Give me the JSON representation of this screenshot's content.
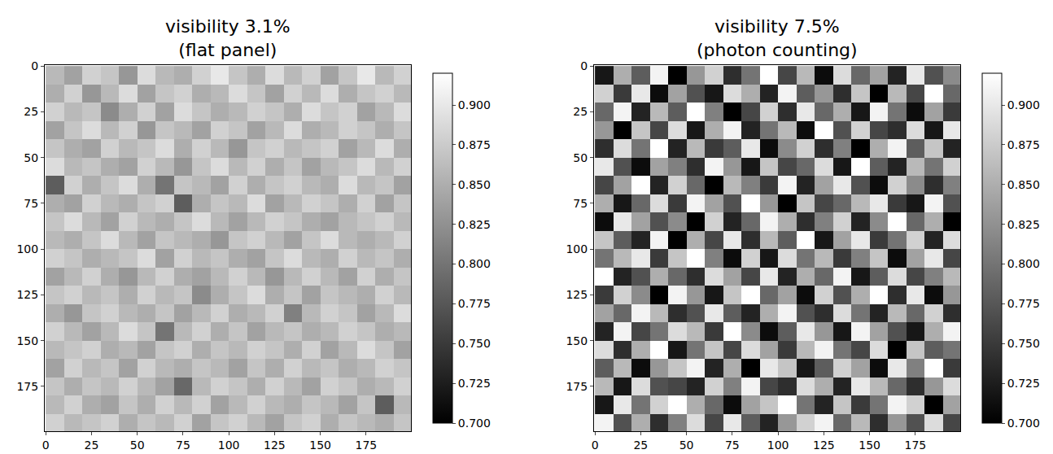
{
  "chart_data": [
    {
      "type": "heatmap",
      "title": "visibility 3.1%\n(flat panel)",
      "color": "gray",
      "x": [
        5,
        15,
        25,
        35,
        45,
        55,
        65,
        75,
        85,
        95,
        105,
        115,
        125,
        135,
        145,
        155,
        165,
        175,
        185,
        195
      ],
      "y": [
        5,
        15,
        25,
        35,
        45,
        55,
        65,
        75,
        85,
        95,
        105,
        115,
        125,
        135,
        145,
        155,
        165,
        175,
        185,
        195
      ],
      "z": [
        [
          0.86,
          0.84,
          0.88,
          0.87,
          0.83,
          0.89,
          0.86,
          0.85,
          0.88,
          0.9,
          0.87,
          0.85,
          0.89,
          0.86,
          0.88,
          0.84,
          0.87,
          0.9,
          0.86,
          0.88
        ],
        [
          0.85,
          0.88,
          0.83,
          0.86,
          0.89,
          0.84,
          0.87,
          0.88,
          0.85,
          0.86,
          0.89,
          0.87,
          0.84,
          0.88,
          0.86,
          0.89,
          0.85,
          0.87,
          0.88,
          0.86
        ],
        [
          0.88,
          0.86,
          0.87,
          0.82,
          0.85,
          0.88,
          0.84,
          0.89,
          0.87,
          0.85,
          0.86,
          0.88,
          0.87,
          0.85,
          0.89,
          0.87,
          0.88,
          0.84,
          0.86,
          0.89
        ],
        [
          0.84,
          0.87,
          0.89,
          0.86,
          0.88,
          0.83,
          0.87,
          0.86,
          0.84,
          0.88,
          0.87,
          0.84,
          0.86,
          0.89,
          0.85,
          0.86,
          0.88,
          0.87,
          0.85,
          0.87
        ],
        [
          0.87,
          0.85,
          0.84,
          0.88,
          0.86,
          0.87,
          0.89,
          0.85,
          0.88,
          0.86,
          0.83,
          0.87,
          0.88,
          0.86,
          0.87,
          0.88,
          0.84,
          0.86,
          0.89,
          0.85
        ],
        [
          0.89,
          0.86,
          0.87,
          0.85,
          0.84,
          0.88,
          0.86,
          0.83,
          0.87,
          0.89,
          0.86,
          0.88,
          0.85,
          0.87,
          0.84,
          0.86,
          0.87,
          0.89,
          0.86,
          0.88
        ],
        [
          0.78,
          0.88,
          0.85,
          0.87,
          0.89,
          0.85,
          0.8,
          0.87,
          0.86,
          0.84,
          0.88,
          0.85,
          0.87,
          0.88,
          0.86,
          0.85,
          0.89,
          0.86,
          0.87,
          0.84
        ],
        [
          0.85,
          0.84,
          0.88,
          0.86,
          0.85,
          0.87,
          0.88,
          0.78,
          0.85,
          0.87,
          0.86,
          0.89,
          0.84,
          0.86,
          0.88,
          0.87,
          0.85,
          0.88,
          0.84,
          0.87
        ],
        [
          0.87,
          0.89,
          0.86,
          0.84,
          0.88,
          0.86,
          0.85,
          0.87,
          0.89,
          0.86,
          0.84,
          0.86,
          0.88,
          0.87,
          0.85,
          0.84,
          0.86,
          0.87,
          0.88,
          0.86
        ],
        [
          0.86,
          0.85,
          0.87,
          0.89,
          0.86,
          0.84,
          0.87,
          0.86,
          0.85,
          0.83,
          0.87,
          0.88,
          0.86,
          0.84,
          0.87,
          0.89,
          0.86,
          0.85,
          0.86,
          0.88
        ],
        [
          0.88,
          0.87,
          0.85,
          0.86,
          0.87,
          0.89,
          0.84,
          0.88,
          0.86,
          0.87,
          0.85,
          0.84,
          0.87,
          0.89,
          0.86,
          0.85,
          0.88,
          0.86,
          0.87,
          0.85
        ],
        [
          0.84,
          0.86,
          0.88,
          0.85,
          0.83,
          0.86,
          0.88,
          0.85,
          0.84,
          0.86,
          0.88,
          0.86,
          0.83,
          0.86,
          0.88,
          0.86,
          0.84,
          0.88,
          0.85,
          0.87
        ],
        [
          0.87,
          0.88,
          0.86,
          0.87,
          0.85,
          0.88,
          0.86,
          0.87,
          0.82,
          0.85,
          0.87,
          0.89,
          0.85,
          0.87,
          0.84,
          0.87,
          0.86,
          0.85,
          0.88,
          0.86
        ],
        [
          0.85,
          0.83,
          0.87,
          0.88,
          0.86,
          0.85,
          0.87,
          0.84,
          0.86,
          0.88,
          0.85,
          0.86,
          0.88,
          0.81,
          0.86,
          0.88,
          0.87,
          0.84,
          0.86,
          0.89
        ],
        [
          0.88,
          0.86,
          0.84,
          0.86,
          0.89,
          0.87,
          0.8,
          0.86,
          0.88,
          0.85,
          0.87,
          0.84,
          0.86,
          0.87,
          0.85,
          0.86,
          0.88,
          0.87,
          0.85,
          0.86
        ],
        [
          0.86,
          0.87,
          0.88,
          0.85,
          0.86,
          0.84,
          0.87,
          0.88,
          0.85,
          0.87,
          0.86,
          0.88,
          0.87,
          0.85,
          0.88,
          0.84,
          0.86,
          0.89,
          0.87,
          0.84
        ],
        [
          0.84,
          0.88,
          0.86,
          0.87,
          0.84,
          0.88,
          0.86,
          0.85,
          0.87,
          0.86,
          0.84,
          0.87,
          0.85,
          0.88,
          0.86,
          0.87,
          0.85,
          0.86,
          0.88,
          0.87
        ],
        [
          0.87,
          0.85,
          0.87,
          0.86,
          0.88,
          0.86,
          0.84,
          0.79,
          0.86,
          0.88,
          0.87,
          0.85,
          0.88,
          0.86,
          0.84,
          0.88,
          0.87,
          0.85,
          0.86,
          0.88
        ],
        [
          0.86,
          0.88,
          0.85,
          0.84,
          0.87,
          0.85,
          0.88,
          0.86,
          0.88,
          0.84,
          0.86,
          0.88,
          0.86,
          0.85,
          0.87,
          0.86,
          0.84,
          0.87,
          0.78,
          0.86
        ],
        [
          0.88,
          0.86,
          0.87,
          0.88,
          0.85,
          0.87,
          0.86,
          0.88,
          0.84,
          0.87,
          0.88,
          0.86,
          0.84,
          0.87,
          0.88,
          0.85,
          0.87,
          0.86,
          0.85,
          0.87
        ]
      ],
      "xlim": [
        -0.5,
        199.5
      ],
      "ylim": [
        199.5,
        -0.5
      ],
      "xticks": [
        0,
        25,
        50,
        75,
        100,
        125,
        150,
        175
      ],
      "yticks": [
        0,
        25,
        50,
        75,
        100,
        125,
        150,
        175
      ],
      "colorbar_range": [
        0.7,
        0.92
      ],
      "colorbar_ticks": [
        {
          "value": 0.7,
          "label": "0.700"
        },
        {
          "value": 0.725,
          "label": "0.725"
        },
        {
          "value": 0.75,
          "label": "0.750"
        },
        {
          "value": 0.775,
          "label": "0.775"
        },
        {
          "value": 0.8,
          "label": "0.800"
        },
        {
          "value": 0.825,
          "label": "0.825"
        },
        {
          "value": 0.85,
          "label": "0.850"
        },
        {
          "value": 0.875,
          "label": "0.875"
        },
        {
          "value": 0.9,
          "label": "0.900"
        }
      ]
    },
    {
      "type": "heatmap",
      "title": "visibility 7.5%\n(photon counting)",
      "color": "gray",
      "x": [
        5,
        15,
        25,
        35,
        45,
        55,
        65,
        75,
        85,
        95,
        105,
        115,
        125,
        135,
        145,
        155,
        165,
        175,
        185,
        195
      ],
      "y": [
        5,
        15,
        25,
        35,
        45,
        55,
        65,
        75,
        85,
        95,
        105,
        115,
        125,
        135,
        145,
        155,
        165,
        175,
        185,
        195
      ],
      "z": [
        [
          0.72,
          0.85,
          0.78,
          0.91,
          0.7,
          0.83,
          0.88,
          0.74,
          0.8,
          0.92,
          0.76,
          0.86,
          0.71,
          0.89,
          0.79,
          0.84,
          0.73,
          0.9,
          0.77,
          0.82
        ],
        [
          0.88,
          0.75,
          0.9,
          0.71,
          0.84,
          0.77,
          0.72,
          0.89,
          0.85,
          0.73,
          0.91,
          0.78,
          0.83,
          0.74,
          0.87,
          0.7,
          0.86,
          0.76,
          0.92,
          0.79
        ],
        [
          0.79,
          0.91,
          0.73,
          0.86,
          0.78,
          0.92,
          0.81,
          0.7,
          0.76,
          0.88,
          0.74,
          0.9,
          0.79,
          0.85,
          0.72,
          0.91,
          0.8,
          0.71,
          0.84,
          0.75
        ],
        [
          0.83,
          0.7,
          0.87,
          0.76,
          0.89,
          0.72,
          0.85,
          0.91,
          0.73,
          0.8,
          0.86,
          0.71,
          0.92,
          0.77,
          0.88,
          0.76,
          0.74,
          0.89,
          0.72,
          0.9
        ],
        [
          0.74,
          0.89,
          0.8,
          0.92,
          0.73,
          0.86,
          0.75,
          0.78,
          0.9,
          0.71,
          0.82,
          0.88,
          0.74,
          0.81,
          0.7,
          0.85,
          0.91,
          0.78,
          0.87,
          0.73
        ],
        [
          0.9,
          0.77,
          0.71,
          0.84,
          0.81,
          0.74,
          0.91,
          0.83,
          0.72,
          0.87,
          0.76,
          0.79,
          0.89,
          0.72,
          0.92,
          0.78,
          0.73,
          0.86,
          0.8,
          0.88
        ],
        [
          0.76,
          0.84,
          0.92,
          0.73,
          0.88,
          0.79,
          0.7,
          0.86,
          0.81,
          0.75,
          0.91,
          0.73,
          0.84,
          0.9,
          0.77,
          0.71,
          0.88,
          0.82,
          0.74,
          0.81
        ],
        [
          0.85,
          0.72,
          0.79,
          0.89,
          0.75,
          0.91,
          0.84,
          0.77,
          0.92,
          0.83,
          0.7,
          0.87,
          0.76,
          0.79,
          0.86,
          0.9,
          0.75,
          0.72,
          0.91,
          0.77
        ],
        [
          0.71,
          0.9,
          0.84,
          0.77,
          0.82,
          0.7,
          0.88,
          0.73,
          0.79,
          0.91,
          0.85,
          0.74,
          0.81,
          0.88,
          0.73,
          0.82,
          0.92,
          0.79,
          0.85,
          0.7
        ],
        [
          0.87,
          0.78,
          0.73,
          0.91,
          0.7,
          0.85,
          0.76,
          0.9,
          0.74,
          0.86,
          0.78,
          0.92,
          0.72,
          0.84,
          0.9,
          0.75,
          0.8,
          0.88,
          0.73,
          0.89
        ],
        [
          0.8,
          0.86,
          0.9,
          0.75,
          0.87,
          0.92,
          0.81,
          0.71,
          0.88,
          0.72,
          0.89,
          0.8,
          0.86,
          0.75,
          0.81,
          0.87,
          0.71,
          0.84,
          0.9,
          0.76
        ],
        [
          0.92,
          0.73,
          0.77,
          0.85,
          0.79,
          0.74,
          0.89,
          0.84,
          0.76,
          0.9,
          0.73,
          0.85,
          0.79,
          0.91,
          0.72,
          0.78,
          0.89,
          0.76,
          0.81,
          0.86
        ],
        [
          0.75,
          0.88,
          0.82,
          0.7,
          0.91,
          0.83,
          0.72,
          0.87,
          0.92,
          0.79,
          0.84,
          0.71,
          0.88,
          0.77,
          0.85,
          0.92,
          0.74,
          0.9,
          0.71,
          0.83
        ],
        [
          0.84,
          0.79,
          0.91,
          0.86,
          0.74,
          0.77,
          0.9,
          0.78,
          0.73,
          0.85,
          0.91,
          0.77,
          0.74,
          0.89,
          0.8,
          0.73,
          0.86,
          0.79,
          0.88,
          0.74
        ],
        [
          0.73,
          0.91,
          0.76,
          0.8,
          0.89,
          0.86,
          0.75,
          0.92,
          0.82,
          0.71,
          0.78,
          0.9,
          0.83,
          0.72,
          0.91,
          0.84,
          0.77,
          0.72,
          0.85,
          0.91
        ],
        [
          0.89,
          0.74,
          0.85,
          0.92,
          0.72,
          0.8,
          0.87,
          0.76,
          0.89,
          0.84,
          0.75,
          0.86,
          0.91,
          0.8,
          0.76,
          0.89,
          0.7,
          0.87,
          0.78,
          0.8
        ],
        [
          0.78,
          0.86,
          0.71,
          0.83,
          0.87,
          0.91,
          0.73,
          0.85,
          0.7,
          0.9,
          0.87,
          0.72,
          0.78,
          0.88,
          0.84,
          0.71,
          0.9,
          0.81,
          0.92,
          0.75
        ],
        [
          0.86,
          0.72,
          0.89,
          0.77,
          0.76,
          0.73,
          0.88,
          0.81,
          0.91,
          0.76,
          0.74,
          0.89,
          0.85,
          0.73,
          0.9,
          0.86,
          0.79,
          0.74,
          0.83,
          0.89
        ],
        [
          0.72,
          0.9,
          0.8,
          0.88,
          0.92,
          0.85,
          0.79,
          0.71,
          0.84,
          0.87,
          0.92,
          0.8,
          0.73,
          0.87,
          0.75,
          0.8,
          0.91,
          0.88,
          0.7,
          0.84
        ],
        [
          0.91,
          0.77,
          0.85,
          0.74,
          0.81,
          0.89,
          0.76,
          0.9,
          0.78,
          0.73,
          0.83,
          0.88,
          0.91,
          0.79,
          0.86,
          0.74,
          0.83,
          0.77,
          0.89,
          0.76
        ]
      ],
      "xlim": [
        -0.5,
        199.5
      ],
      "ylim": [
        199.5,
        -0.5
      ],
      "xticks": [
        0,
        25,
        50,
        75,
        100,
        125,
        150,
        175
      ],
      "yticks": [
        0,
        25,
        50,
        75,
        100,
        125,
        150,
        175
      ],
      "colorbar_range": [
        0.7,
        0.92
      ],
      "colorbar_ticks": [
        {
          "value": 0.7,
          "label": "0.700"
        },
        {
          "value": 0.725,
          "label": "0.725"
        },
        {
          "value": 0.75,
          "label": "0.750"
        },
        {
          "value": 0.775,
          "label": "0.775"
        },
        {
          "value": 0.8,
          "label": "0.800"
        },
        {
          "value": 0.825,
          "label": "0.825"
        },
        {
          "value": 0.85,
          "label": "0.850"
        },
        {
          "value": 0.875,
          "label": "0.875"
        },
        {
          "value": 0.9,
          "label": "0.900"
        }
      ]
    }
  ]
}
